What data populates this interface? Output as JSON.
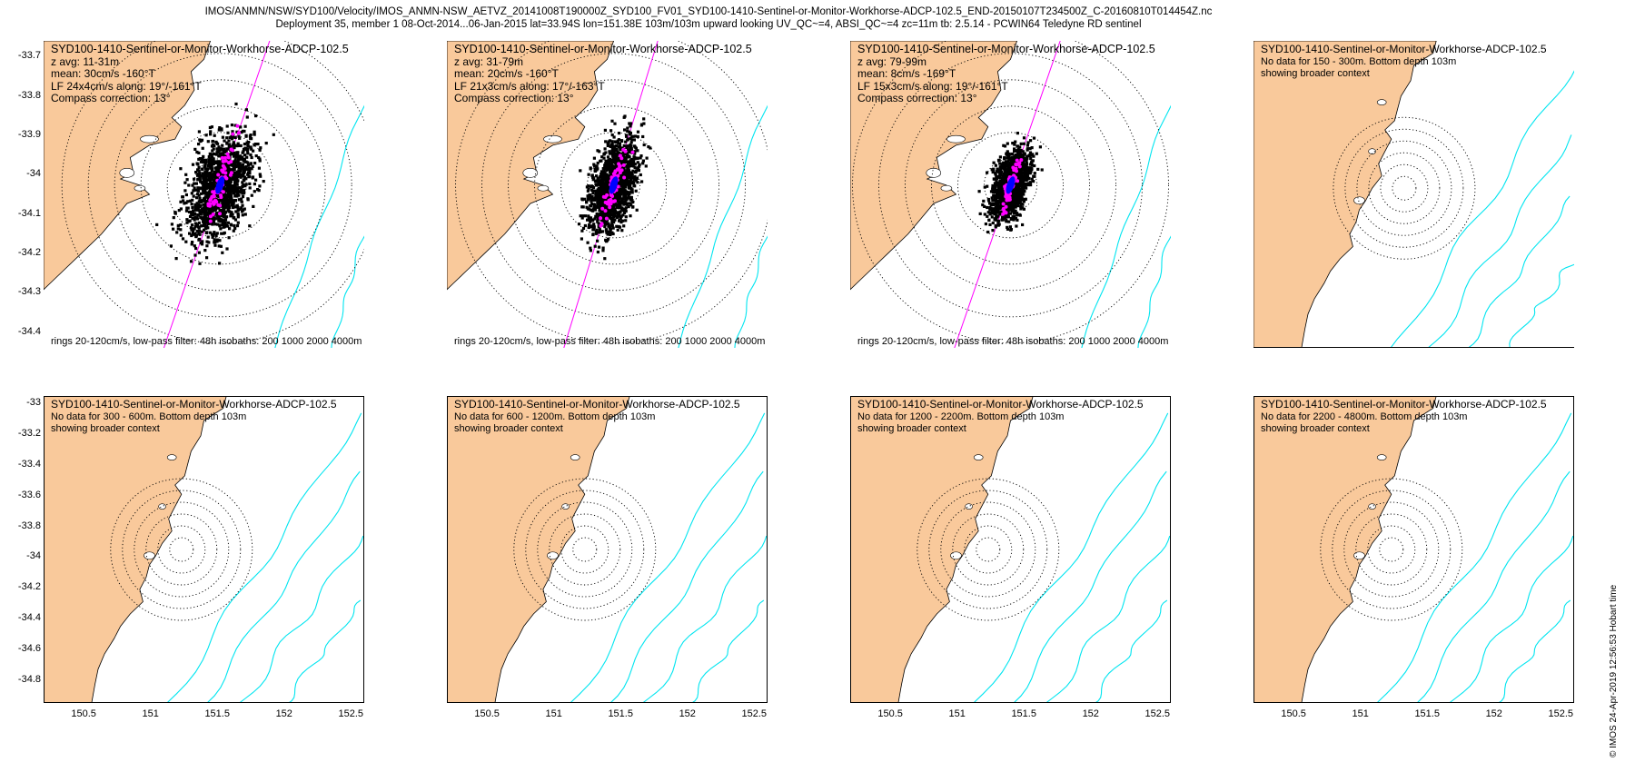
{
  "title_line1": "IMOS/ANMN/NSW/SYD100/Velocity/IMOS_ANMN-NSW_AETVZ_20141008T190000Z_SYD100_FV01_SYD100-1410-Sentinel-or-Monitor-Workhorse-ADCP-102.5_END-20150107T234500Z_C-20160810T014454Z.nc",
  "title_line2": "Deployment 35, member 1 08-Oct-2014...06-Jan-2015 lat=33.94S lon=151.38E 103m/103m upward looking UV_QC~=4, ABSI_QC~=4 zc=11m tb: 2.5.14 - PCWIN64 Teledyne RD sentinel",
  "side_note": "© IMOS 24-Apr-2019 12:56:53 Hobart time",
  "colors": {
    "land": "#F9C99B",
    "isobath": "#00E5F0",
    "scatter": "#000000",
    "lowpass": "#FF00FF",
    "mean": "#0000FF",
    "principal_axis": "#FF00FF"
  },
  "chart_data": [
    {
      "type": "scatter",
      "title": "SYD100-1410-Sentinel-or-Monitor-Workhorse-ADCP-102.5",
      "lines": [
        "z avg: 11-31m",
        "mean: 30cm/s -160°T",
        "LF 24x4cm/s along: 19°/-161°T",
        "Compass correction: 13°"
      ],
      "footer": "rings 20-120cm/s, low-pass filter: 48h isobaths: 200 1000 2000 4000m",
      "xlim": [
        150.2,
        152.6
      ],
      "ylim": [
        -34.44,
        -33.66
      ],
      "yticks": [
        "-33.7",
        "-33.8",
        "-33.9",
        "-34",
        "-34.1",
        "-34.2",
        "-34.3",
        "-34.4"
      ],
      "yticks_values": [
        -33.7,
        -33.8,
        -33.9,
        -34,
        -34.1,
        -34.2,
        -34.3,
        -34.4
      ],
      "xticks": [],
      "xticks_values": [],
      "rings_cm_s": [
        20,
        40,
        60,
        80,
        100,
        120
      ],
      "center": [
        151.38,
        -33.94
      ],
      "mean_velocity": {
        "speed_cm_s": 30,
        "direction_degT": -160
      },
      "principal_axis_degT": 19,
      "spread_cm_s": [
        24,
        4
      ],
      "isobaths_m": [
        200,
        1000,
        2000,
        4000
      ],
      "has_data": true
    },
    {
      "type": "scatter",
      "title": "SYD100-1410-Sentinel-or-Monitor-Workhorse-ADCP-102.5",
      "lines": [
        "z avg: 31-79m",
        "mean: 20cm/s -160°T",
        "LF 21x3cm/s along: 17°/-163°T",
        "Compass correction: 13°"
      ],
      "footer": "rings 20-120cm/s, low-pass filter: 48h isobaths: 200 1000 2000 4000m",
      "xlim": [
        150.2,
        152.6
      ],
      "ylim": [
        -34.44,
        -33.66
      ],
      "yticks": [],
      "yticks_values": [],
      "xticks": [],
      "xticks_values": [],
      "rings_cm_s": [
        20,
        40,
        60,
        80,
        100,
        120
      ],
      "center": [
        151.38,
        -33.94
      ],
      "mean_velocity": {
        "speed_cm_s": 20,
        "direction_degT": -160
      },
      "principal_axis_degT": 17,
      "spread_cm_s": [
        21,
        3
      ],
      "isobaths_m": [
        200,
        1000,
        2000,
        4000
      ],
      "has_data": true
    },
    {
      "type": "scatter",
      "title": "SYD100-1410-Sentinel-or-Monitor-Workhorse-ADCP-102.5",
      "lines": [
        "z avg: 79-99m",
        "mean: 8cm/s -169°T",
        "LF 15x3cm/s along: 19°/-161°T",
        "Compass correction: 13°"
      ],
      "footer": "rings 20-120cm/s, low-pass filter: 48h isobaths: 200 1000 2000 4000m",
      "xlim": [
        150.2,
        152.6
      ],
      "ylim": [
        -34.44,
        -33.66
      ],
      "yticks": [],
      "yticks_values": [],
      "xticks": [],
      "xticks_values": [],
      "rings_cm_s": [
        20,
        40,
        60,
        80,
        100,
        120
      ],
      "center": [
        151.38,
        -33.94
      ],
      "mean_velocity": {
        "speed_cm_s": 8,
        "direction_degT": -169
      },
      "principal_axis_degT": 19,
      "spread_cm_s": [
        15,
        3
      ],
      "isobaths_m": [
        200,
        1000,
        2000,
        4000
      ],
      "has_data": true
    },
    {
      "type": "scatter",
      "title": "SYD100-1410-Sentinel-or-Monitor-Workhorse-ADCP-102.5",
      "lines": [
        "No data for 150 - 300m. Bottom depth 103m",
        "showing broader context"
      ],
      "footer": "",
      "xlim": [
        150.2,
        152.6
      ],
      "ylim": [
        -34.44,
        -33.66
      ],
      "yticks": [],
      "yticks_values": [],
      "xticks": [],
      "xticks_values": [],
      "rings_count": 6,
      "center": [
        151.38,
        -33.94
      ],
      "isobaths_m": [
        200,
        1000,
        2000,
        4000
      ],
      "has_data": false
    },
    {
      "type": "scatter",
      "title": "SYD100-1410-Sentinel-or-Monitor-Workhorse-ADCP-102.5",
      "lines": [
        "No data for 300 - 600m. Bottom depth 103m",
        "showing broader context"
      ],
      "footer": "",
      "xlim": [
        150.2,
        152.6
      ],
      "ylim": [
        -34.95,
        -32.95
      ],
      "yticks": [
        "-33",
        "-33.2",
        "-33.4",
        "-33.6",
        "-33.8",
        "-34",
        "-34.2",
        "-34.4",
        "-34.6",
        "-34.8"
      ],
      "yticks_values": [
        -33,
        -33.2,
        -33.4,
        -33.6,
        -33.8,
        -34,
        -34.2,
        -34.4,
        -34.6,
        -34.8
      ],
      "xticks": [
        "150.5",
        "151",
        "151.5",
        "152",
        "152.5"
      ],
      "xticks_values": [
        150.5,
        151,
        151.5,
        152,
        152.5
      ],
      "rings_count": 6,
      "center": [
        151.38,
        -33.94
      ],
      "isobaths_m": [
        200,
        1000,
        2000,
        4000
      ],
      "has_data": false
    },
    {
      "type": "scatter",
      "title": "SYD100-1410-Sentinel-or-Monitor-Workhorse-ADCP-102.5",
      "lines": [
        "No data for 600 - 1200m. Bottom depth 103m",
        "showing broader context"
      ],
      "footer": "",
      "xlim": [
        150.2,
        152.6
      ],
      "ylim": [
        -34.95,
        -32.95
      ],
      "yticks": [],
      "yticks_values": [],
      "xticks": [
        "150.5",
        "151",
        "151.5",
        "152",
        "152.5"
      ],
      "xticks_values": [
        150.5,
        151,
        151.5,
        152,
        152.5
      ],
      "rings_count": 6,
      "center": [
        151.38,
        -33.94
      ],
      "isobaths_m": [
        200,
        1000,
        2000,
        4000
      ],
      "has_data": false
    },
    {
      "type": "scatter",
      "title": "SYD100-1410-Sentinel-or-Monitor-Workhorse-ADCP-102.5",
      "lines": [
        "No data for 1200 - 2200m. Bottom depth 103m",
        "showing broader context"
      ],
      "footer": "",
      "xlim": [
        150.2,
        152.6
      ],
      "ylim": [
        -34.95,
        -32.95
      ],
      "yticks": [],
      "yticks_values": [],
      "xticks": [
        "150.5",
        "151",
        "151.5",
        "152",
        "152.5"
      ],
      "xticks_values": [
        150.5,
        151,
        151.5,
        152,
        152.5
      ],
      "rings_count": 6,
      "center": [
        151.38,
        -33.94
      ],
      "isobaths_m": [
        200,
        1000,
        2000,
        4000
      ],
      "has_data": false
    },
    {
      "type": "scatter",
      "title": "SYD100-1410-Sentinel-or-Monitor-Workhorse-ADCP-102.5",
      "lines": [
        "No data for 2200 - 4800m. Bottom depth 103m",
        "showing broader context"
      ],
      "footer": "",
      "xlim": [
        150.2,
        152.6
      ],
      "ylim": [
        -34.95,
        -32.95
      ],
      "yticks": [],
      "yticks_values": [],
      "xticks": [
        "150.5",
        "151",
        "151.5",
        "152",
        "152.5"
      ],
      "xticks_values": [
        150.5,
        151,
        151.5,
        152,
        152.5
      ],
      "rings_count": 6,
      "center": [
        151.38,
        -33.94
      ],
      "isobaths_m": [
        200,
        1000,
        2000,
        4000
      ],
      "has_data": false
    }
  ]
}
